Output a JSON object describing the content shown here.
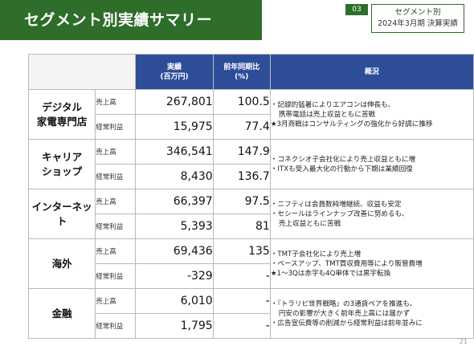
{
  "slide": {
    "title": "セグメント別実績サマリー",
    "section_number": "03",
    "subtitle_line1": "セグメント別",
    "subtitle_line2": "2024年3月期 決算実績",
    "page_number": "21"
  },
  "table": {
    "headers": {
      "actual_line1": "実績",
      "actual_line2": "(百万円)",
      "yoy_line1": "前年同期比",
      "yoy_line2": "(%)",
      "summary": "概況"
    },
    "segments": [
      {
        "name_line1": "デジタル",
        "name_line2": "家電専門店",
        "rows": [
          {
            "metric": "売上高",
            "value": "267,801",
            "yoy": "100.5"
          },
          {
            "metric": "経常利益",
            "value": "15,975",
            "yoy": "77.4"
          }
        ],
        "summary": [
          "・記録的猛暑によりエアコンは伸長も、",
          "  携帯電話は売上収益ともに苦戦",
          "★3月商戦はコンサルティングの強化から好調に推移"
        ]
      },
      {
        "name_line1": "キャリア",
        "name_line2": "ショップ",
        "rows": [
          {
            "metric": "売上高",
            "value": "346,541",
            "yoy": "147.9"
          },
          {
            "metric": "経常利益",
            "value": "8,430",
            "yoy": "136.7"
          }
        ],
        "summary": [
          "・コネクシオ子会社化により売上収益ともに増",
          "・ITXも受入最大化の行動から下期は業績回復"
        ]
      },
      {
        "name_line1": "インターネット",
        "name_line2": "",
        "rows": [
          {
            "metric": "売上高",
            "value": "66,397",
            "yoy": "97.5"
          },
          {
            "metric": "経常利益",
            "value": "5,393",
            "yoy": "81"
          }
        ],
        "summary": [
          "・ニフティは会員数純増継続、収益も安定",
          "・セシールはラインナップ改善に努めるも、",
          "  売上収益ともに苦戦"
        ]
      },
      {
        "name_line1": "海外",
        "name_line2": "",
        "rows": [
          {
            "metric": "売上高",
            "value": "69,436",
            "yoy": "135"
          },
          {
            "metric": "経常利益",
            "value": "-329",
            "yoy": "-"
          }
        ],
        "summary": [
          "・TMT子会社化により売上増",
          "・ベースアップ、TMT買収費用等により販管費増",
          "★1～3Qは赤字も4Q単体では黒字転換"
        ]
      },
      {
        "name_line1": "金融",
        "name_line2": "",
        "rows": [
          {
            "metric": "売上高",
            "value": "6,010",
            "yoy": "-"
          },
          {
            "metric": "経常利益",
            "value": "1,795",
            "yoy": "-"
          }
        ],
        "summary": [
          "・『トラリピ世界戦略』の3通貨ペアを推進も、",
          "  円安の影響が大きく前年売上高には届かず",
          "・広告宣伝費等の削減から経常利益は前年並みに"
        ]
      }
    ]
  }
}
